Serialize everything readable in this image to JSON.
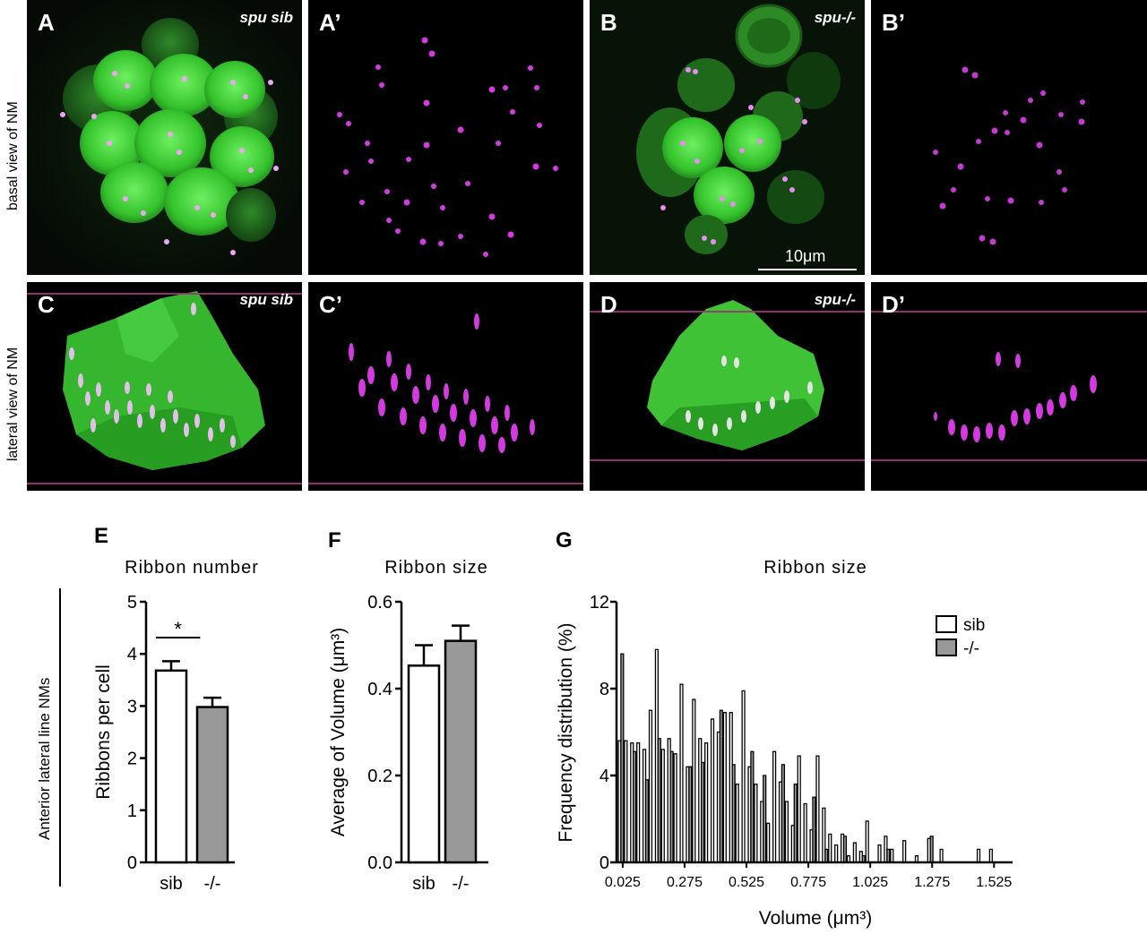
{
  "micrographs": {
    "row_labels": [
      "basal view of NM",
      "lateral view of NM"
    ],
    "panels": [
      {
        "label": "A",
        "condition": "spu sib"
      },
      {
        "label": "A’",
        "condition": ""
      },
      {
        "label": "B",
        "condition": "spu-/-"
      },
      {
        "label": "B’",
        "condition": ""
      },
      {
        "label": "C",
        "condition": "spu sib"
      },
      {
        "label": "C’",
        "condition": ""
      },
      {
        "label": "D",
        "condition": "spu-/-"
      },
      {
        "label": "D’",
        "condition": ""
      }
    ],
    "scale_bar": "10μm",
    "colors": {
      "hair_cells": "#3ec93a",
      "ribbons": "#d33be0",
      "background": "#000000"
    }
  },
  "side_label": "Anterior lateral line NMs",
  "chart_data": [
    {
      "panel": "E",
      "type": "bar",
      "title": "Ribbon number",
      "categories": [
        "sib",
        "-/-"
      ],
      "values": [
        3.68,
        2.98
      ],
      "errors": [
        0.18,
        0.18
      ],
      "ylabel": "Ribbons per cell",
      "ylim": [
        0,
        5
      ],
      "yticks": [
        "0",
        "1",
        "2",
        "3",
        "4",
        "5"
      ],
      "significance": "*",
      "bar_colors": [
        "#ffffff",
        "#999999"
      ]
    },
    {
      "panel": "F",
      "type": "bar",
      "title": "Ribbon size",
      "categories": [
        "sib",
        "-/-"
      ],
      "values": [
        0.453,
        0.51
      ],
      "errors": [
        0.047,
        0.035
      ],
      "ylabel": "Average of Volume (μm³)",
      "ylim": [
        0,
        0.6
      ],
      "yticks": [
        "0.0",
        "0.2",
        "0.4",
        "0.6"
      ],
      "bar_colors": [
        "#ffffff",
        "#999999"
      ]
    },
    {
      "panel": "G",
      "type": "bar",
      "title": "Ribbon size",
      "xlabel": "Volume (μm³)",
      "ylabel": "Frequency distribution (%)",
      "ylim": [
        0,
        12
      ],
      "yticks": [
        "0",
        "4",
        "8",
        "12"
      ],
      "xticks": [
        "0.025",
        "0.275",
        "0.525",
        "0.775",
        "1.025",
        "1.275",
        "1.525"
      ],
      "xlim": [
        0,
        1.6
      ],
      "bin_width": 0.025,
      "legend_position": "top-right",
      "series": [
        {
          "name": "sib",
          "color": "#ffffff",
          "x": [
            0.025,
            0.05,
            0.075,
            0.1,
            0.125,
            0.15,
            0.175,
            0.2,
            0.225,
            0.25,
            0.275,
            0.3,
            0.325,
            0.35,
            0.375,
            0.4,
            0.425,
            0.45,
            0.475,
            0.5,
            0.525,
            0.55,
            0.575,
            0.6,
            0.625,
            0.65,
            0.675,
            0.7,
            0.725,
            0.75,
            0.775,
            0.8,
            0.825,
            0.85,
            0.875,
            0.9,
            0.925,
            0.95,
            0.975,
            1.0,
            1.025,
            1.075,
            1.1,
            1.125,
            1.175,
            1.225,
            1.275,
            1.325,
            1.475,
            1.525
          ],
          "values": [
            5.6,
            5.6,
            5.5,
            5.5,
            5.2,
            7.0,
            9.8,
            5.2,
            5.7,
            5.0,
            8.2,
            4.4,
            7.5,
            5.7,
            5.5,
            6.6,
            6.0,
            6.9,
            6.9,
            3.6,
            7.9,
            4.4,
            3.6,
            2.8,
            1.8,
            5.1,
            3.7,
            2.8,
            1.7,
            4.9,
            2.7,
            1.5,
            4.9,
            2.5,
            1.3,
            0.8,
            1.3,
            0.3,
            0.9,
            0.5,
            1.9,
            0.8,
            1.2,
            0.6,
            1.0,
            0.3,
            1.1,
            0.6,
            0.6,
            0.6
          ]
        },
        {
          "name": "-/-",
          "color": "#999999",
          "x": [
            0.025,
            0.05,
            0.075,
            0.1,
            0.125,
            0.15,
            0.175,
            0.2,
            0.225,
            0.25,
            0.275,
            0.3,
            0.325,
            0.35,
            0.375,
            0.4,
            0.425,
            0.45,
            0.475,
            0.5,
            0.525,
            0.55,
            0.575,
            0.6,
            0.625,
            0.65,
            0.675,
            0.7,
            0.725,
            0.75,
            0.775,
            0.8,
            0.825,
            0.85,
            0.875,
            0.9,
            0.925,
            0.95,
            0.975,
            1.0,
            1.025,
            1.075,
            1.1,
            1.125,
            1.175,
            1.225,
            1.275,
            1.325,
            1.475,
            1.525
          ],
          "values": [
            9.6,
            0,
            5.1,
            0,
            3.8,
            0,
            5.7,
            0,
            5.1,
            0,
            0,
            4.4,
            0,
            4.6,
            0,
            0,
            7.0,
            0,
            4.5,
            0,
            0,
            5.1,
            0,
            4.0,
            0,
            0,
            4.5,
            0,
            3.6,
            0,
            0,
            3.0,
            0,
            0.6,
            0,
            0,
            1.2,
            0,
            0,
            0.3,
            0,
            0,
            0.6,
            0,
            0,
            0,
            1.2,
            0,
            0,
            0
          ]
        }
      ]
    }
  ],
  "panel_letters": {
    "E": "E",
    "F": "F",
    "G": "G"
  }
}
